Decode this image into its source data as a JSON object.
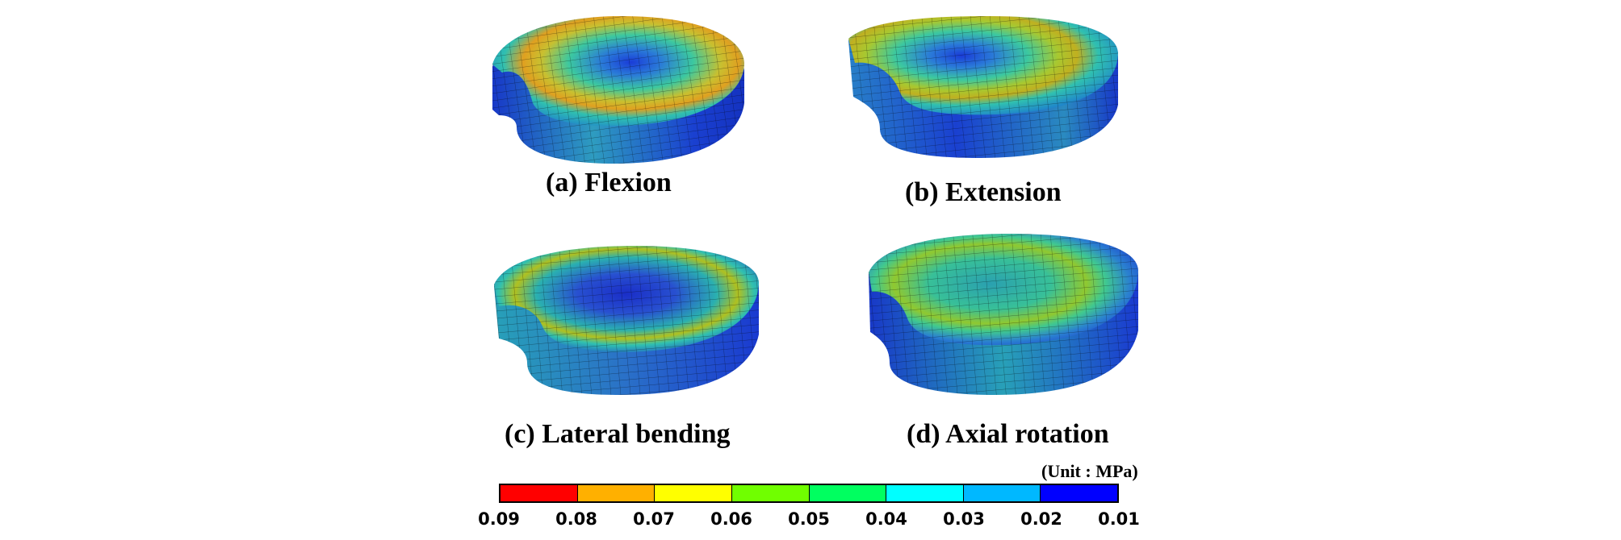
{
  "figure": {
    "panels": [
      {
        "caption": "(a) Flexion",
        "map": "flexion"
      },
      {
        "caption": "(b) Extension",
        "map": "extension"
      },
      {
        "caption": "(c) Lateral bending",
        "map": "lateral"
      },
      {
        "caption": "(d) Axial rotation",
        "map": "axial"
      }
    ],
    "colorbar": {
      "unit_label": "(Unit : MPa)",
      "tick_labels": [
        "0.09",
        "0.08",
        "0.07",
        "0.06",
        "0.05",
        "0.04",
        "0.03",
        "0.02",
        "0.01"
      ],
      "colors": [
        "#ff0000",
        "#ffb000",
        "#ffff00",
        "#70ff00",
        "#00ff60",
        "#00ffff",
        "#00b8ff",
        "#0000ff"
      ]
    }
  }
}
